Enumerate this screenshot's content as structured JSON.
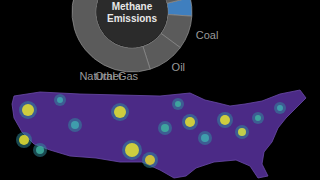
{
  "chart_data": {
    "type": "donut",
    "title": "Methane Emissions",
    "categories": [
      "Other",
      "Coal",
      "Oil",
      "Natural Gas"
    ],
    "values": [
      5,
      9,
      10,
      76
    ],
    "colors": [
      "#3f7fbf",
      "#5b5b5b",
      "#5b5b5b",
      "#5b5b5b"
    ]
  }
}
